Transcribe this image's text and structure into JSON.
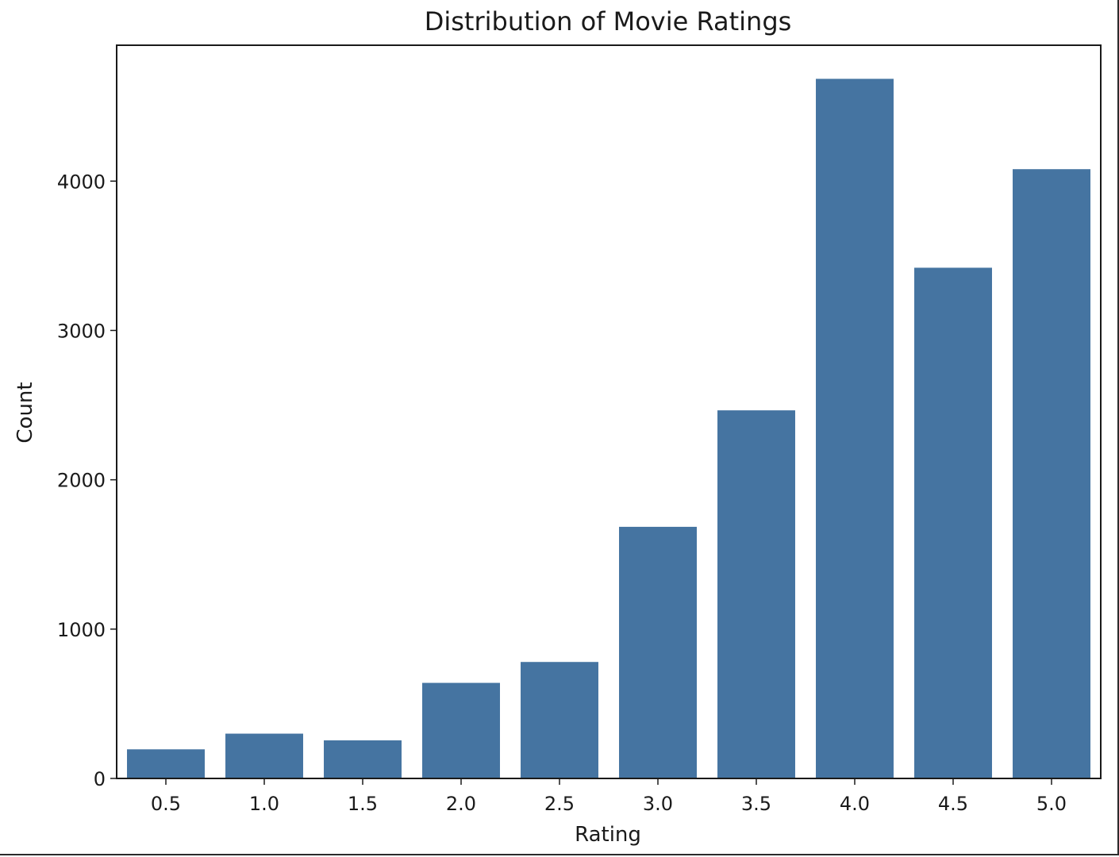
{
  "chart_data": {
    "type": "bar",
    "title": "Distribution of Movie Ratings",
    "xlabel": "Rating",
    "ylabel": "Count",
    "categories": [
      "0.5",
      "1.0",
      "1.5",
      "2.0",
      "2.5",
      "3.0",
      "3.5",
      "4.0",
      "4.5",
      "5.0"
    ],
    "values": [
      195,
      300,
      255,
      640,
      780,
      1685,
      2465,
      4685,
      3420,
      4080
    ],
    "ylim": [
      0,
      4910
    ],
    "yticks": [
      0,
      1000,
      2000,
      3000,
      4000
    ],
    "ytick_labels": [
      "0",
      "1000",
      "2000",
      "3000",
      "4000"
    ],
    "grid": false,
    "legend": "none",
    "bar_color": "#4574a1",
    "axis_color": "#1a1a1a"
  }
}
